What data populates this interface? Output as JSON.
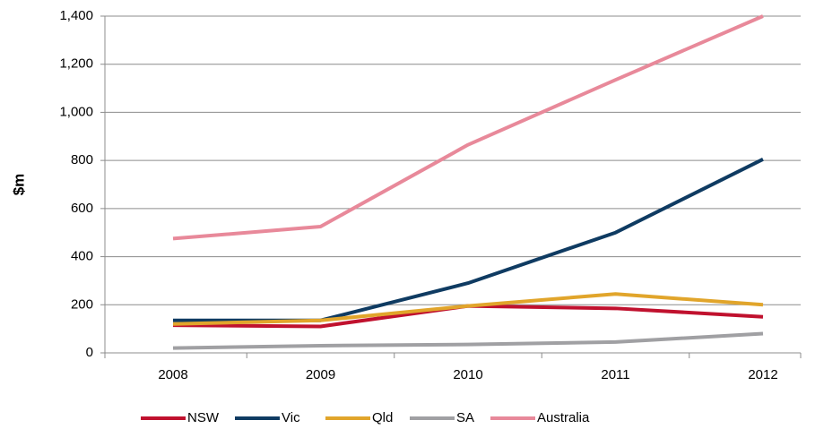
{
  "chart_data": {
    "type": "line",
    "y_label": "$m",
    "categories": [
      "2008",
      "2009",
      "2010",
      "2011",
      "2012"
    ],
    "series": [
      {
        "name": "NSW",
        "color": "#c0112e",
        "values": [
          115,
          110,
          195,
          185,
          150
        ]
      },
      {
        "name": "Vic",
        "color": "#0f3b62",
        "values": [
          135,
          135,
          290,
          500,
          805
        ]
      },
      {
        "name": "Qld",
        "color": "#e1a52b",
        "values": [
          120,
          135,
          195,
          245,
          200
        ]
      },
      {
        "name": "SA",
        "color": "#a0a0a3",
        "values": [
          20,
          30,
          35,
          45,
          80
        ]
      },
      {
        "name": "Australia",
        "color": "#e8899a",
        "values": [
          475,
          525,
          865,
          1135,
          1400
        ]
      }
    ],
    "ylim": [
      0,
      1400
    ],
    "yticks": [
      0,
      200,
      400,
      600,
      800,
      {
        "value": 1000,
        "label": "1,000"
      },
      {
        "value": 1200,
        "label": "1,200"
      },
      {
        "value": 1400,
        "label": "1,400"
      }
    ],
    "grid": true,
    "legend": "bottom"
  }
}
